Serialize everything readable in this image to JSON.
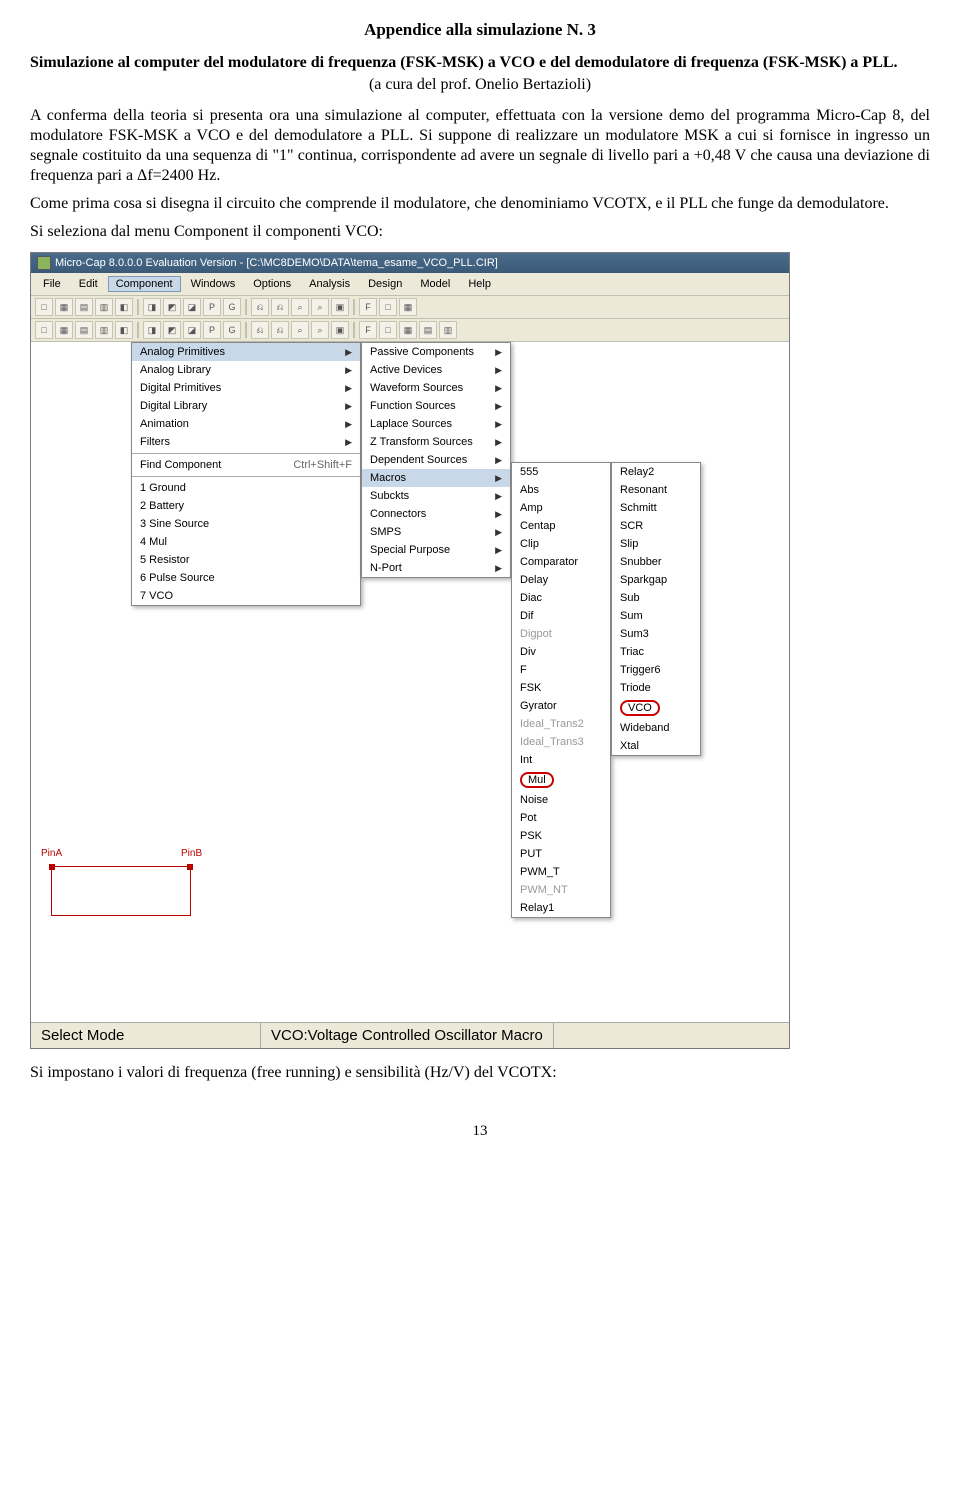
{
  "doc": {
    "title": "Appendice alla simulazione N. 3",
    "subtitle": "Simulazione al computer del modulatore di frequenza (FSK-MSK) a VCO e del demodulatore di frequenza (FSK-MSK) a PLL.",
    "byline": "(a cura del prof. Onelio Bertazioli)",
    "para1": "A conferma della teoria si presenta ora una simulazione al computer, effettuata con la versione demo del programma Micro-Cap 8, del modulatore FSK-MSK a VCO e del demodulatore a PLL. Si suppone di realizzare un modulatore MSK a cui si fornisce in ingresso un segnale costituito da una sequenza di \"1\" continua, corrispondente ad avere un segnale di livello pari a +0,48 V che causa una deviazione di frequenza pari a Δf=2400 Hz.",
    "para2": "Come prima cosa si disegna il circuito che comprende il modulatore, che denominiamo VCOTX, e il PLL che funge da demodulatore.",
    "para3": "Si seleziona dal menu Component il componenti VCO:",
    "post": "Si impostano i valori di frequenza (free running) e sensibilità (Hz/V) del VCOTX:",
    "page": "13"
  },
  "app": {
    "title": "Micro-Cap 8.0.0.0 Evaluation Version - [C:\\MC8DEMO\\DATA\\tema_esame_VCO_PLL.CIR]",
    "menus": [
      "File",
      "Edit",
      "Component",
      "Windows",
      "Options",
      "Analysis",
      "Design",
      "Model",
      "Help"
    ],
    "component_menu": {
      "items": [
        {
          "label": "Analog Primitives",
          "arrow": true
        },
        {
          "label": "Analog Library",
          "arrow": true
        },
        {
          "label": "Digital Primitives",
          "arrow": true
        },
        {
          "label": "Digital Library",
          "arrow": true
        },
        {
          "label": "Animation",
          "arrow": true
        },
        {
          "label": "Filters",
          "arrow": true
        },
        {
          "sep": true
        },
        {
          "label": "Find Component",
          "shortcut": "Ctrl+Shift+F"
        },
        {
          "sep": true
        },
        {
          "label": "1 Ground"
        },
        {
          "label": "2 Battery"
        },
        {
          "label": "3 Sine Source"
        },
        {
          "label": "4 Mul"
        },
        {
          "label": "5 Resistor"
        },
        {
          "label": "6 Pulse Source"
        },
        {
          "label": "7 VCO"
        }
      ]
    },
    "analog_primitives_menu": {
      "items": [
        {
          "label": "Passive Components",
          "arrow": true
        },
        {
          "label": "Active Devices",
          "arrow": true
        },
        {
          "label": "Waveform Sources",
          "arrow": true
        },
        {
          "label": "Function Sources",
          "arrow": true
        },
        {
          "label": "Laplace Sources",
          "arrow": true
        },
        {
          "label": "Z Transform Sources",
          "arrow": true
        },
        {
          "label": "Dependent Sources",
          "arrow": true
        },
        {
          "label": "Macros",
          "arrow": true,
          "hovered": true
        },
        {
          "label": "Subckts",
          "arrow": true
        },
        {
          "label": "Connectors",
          "arrow": true
        },
        {
          "label": "SMPS",
          "arrow": true
        },
        {
          "label": "Special Purpose",
          "arrow": true
        },
        {
          "label": "N-Port",
          "arrow": true
        }
      ]
    },
    "macros_col1": [
      "555",
      "Abs",
      "Amp",
      "Centap",
      "Clip",
      "Comparator",
      "Delay",
      "Diac",
      "Dif",
      "Digpot",
      "Div",
      "F",
      "FSK",
      "Gyrator",
      "Ideal_Trans2",
      "Ideal_Trans3",
      "Int",
      "Mul",
      "Noise",
      "Pot",
      "PSK",
      "PUT",
      "PWM_T",
      "PWM_NT",
      "Relay1"
    ],
    "macros_col1_disabled": [
      "Digpot",
      "Ideal_Trans2",
      "Ideal_Trans3",
      "PWM_NT"
    ],
    "macros_col1_circled": "Mul",
    "macros_col2": [
      "Relay2",
      "Resonant",
      "Schmitt",
      "SCR",
      "Slip",
      "Snubber",
      "Sparkgap",
      "Sub",
      "Sum",
      "Sum3",
      "Triac",
      "Trigger6",
      "Triode",
      "VCO",
      "Wideband",
      "Xtal"
    ],
    "macros_col2_circled": "VCO",
    "status": {
      "mode": "Select Mode",
      "desc": "VCO:Voltage Controlled Oscillator Macro"
    },
    "pins": {
      "a": "PinA",
      "b": "PinB"
    }
  },
  "style": {
    "titlebar_bg": "#3a5a78",
    "menu_bg": "#ece9d8",
    "hover_bg": "#c8d8e8",
    "circle_color": "#c00",
    "pin_color": "#b00"
  }
}
